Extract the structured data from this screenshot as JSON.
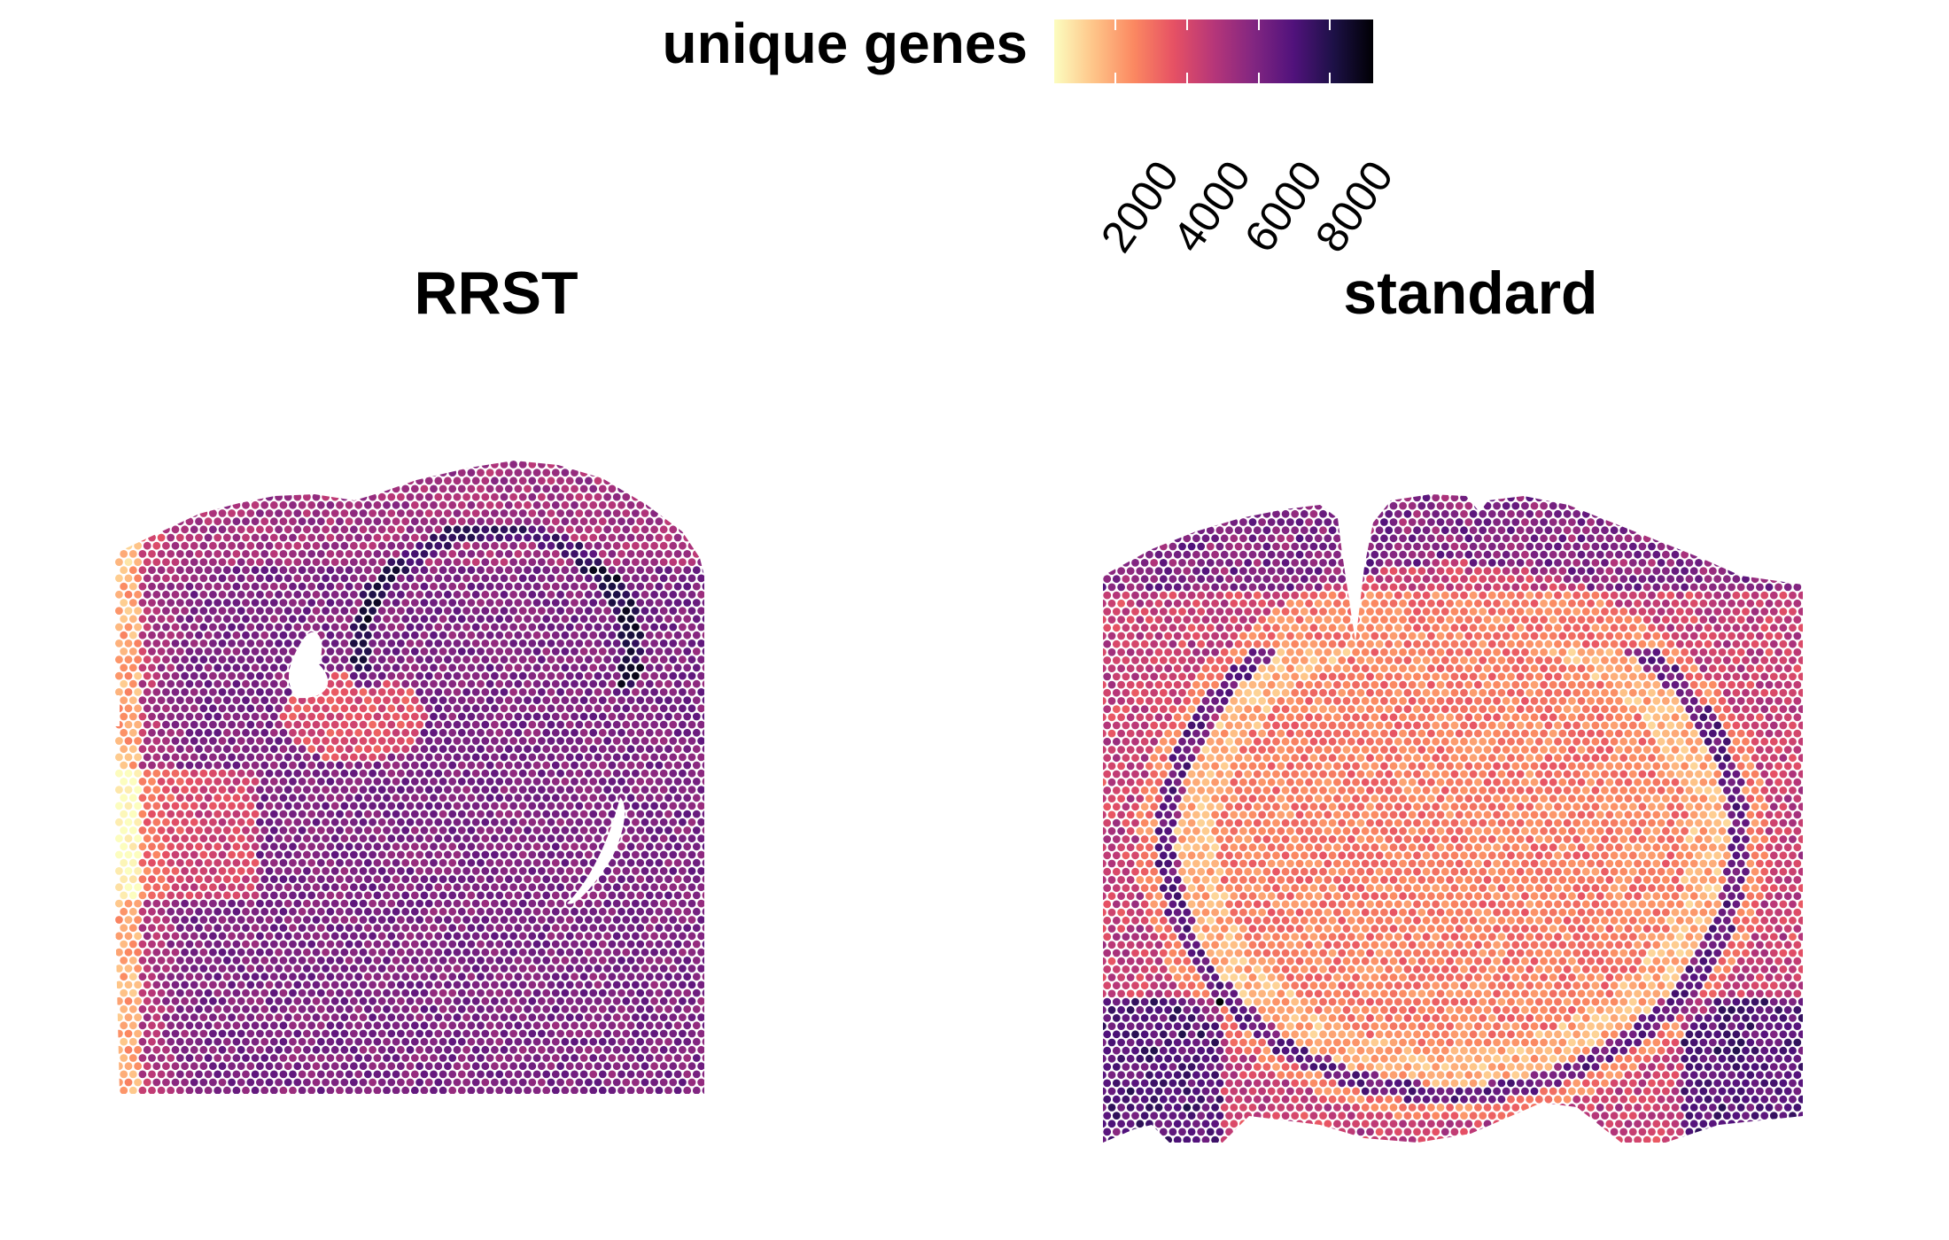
{
  "legend": {
    "title": "unique genes",
    "ticks": [
      "2000",
      "4000",
      "6000",
      "8000"
    ],
    "tick_values": [
      2000,
      4000,
      6000,
      8000
    ],
    "range": [
      300,
      9200
    ],
    "palette": [
      "#fcfdbf",
      "#fec488",
      "#fb8861",
      "#e65164",
      "#b63679",
      "#822681",
      "#51127c",
      "#1d1147",
      "#000004"
    ]
  },
  "chart_data": {
    "type": "heatmap",
    "encoding": "spatial hexagonal spot grid, color = unique genes per spot",
    "color_scale": "magma (reversed)",
    "facets": [
      {
        "title": "RRST",
        "typical_value": 6000,
        "observed_range": [
          300,
          9000
        ]
      },
      {
        "title": "standard",
        "typical_value": 2800,
        "observed_range": [
          300,
          7600
        ]
      }
    ]
  }
}
